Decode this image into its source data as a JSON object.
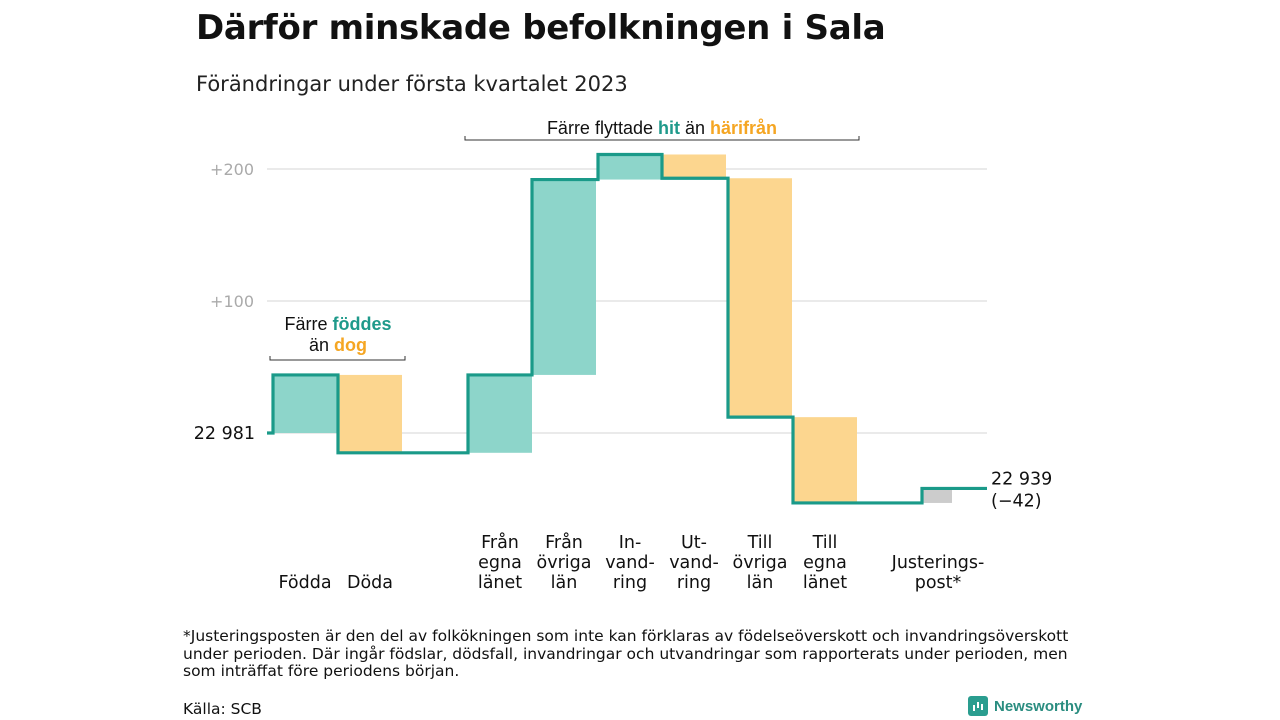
{
  "header": {
    "title": "Därför minskade befolkningen i Sala",
    "subtitle": "Förändringar under första kvartalet 2023"
  },
  "annotations": {
    "migration": {
      "prefix": "Färre flyttade ",
      "highlight_in": "hit",
      "middle": " än ",
      "highlight_out": "härifrån"
    },
    "births": {
      "prefix": "Färre ",
      "highlight_in": "föddes",
      "line2_prefix": "än ",
      "highlight_out": "dog"
    },
    "start_label": "22 981",
    "end_label": "22 939",
    "end_change": "(−42)"
  },
  "colors": {
    "increase": "#8dd5ca",
    "decrease": "#fcd68f",
    "adjustment": "#cccccc",
    "step_line": "#1a9a89",
    "in_text": "#1f9a8b",
    "out_text": "#f5a623",
    "grid": "#dddddd",
    "tick_text": "#aaaaaa"
  },
  "chart_data": {
    "type": "waterfall",
    "baseline_start": 22981,
    "yticks": [
      {
        "value": 200,
        "label": "+200"
      },
      {
        "value": 100,
        "label": "+100"
      }
    ],
    "grid": true,
    "steps": [
      {
        "category": [
          "Födda"
        ],
        "change": 44,
        "kind": "increase"
      },
      {
        "category": [
          "Döda"
        ],
        "change": -59,
        "kind": "decrease"
      },
      {
        "category": [
          "Från",
          "egna",
          "länet"
        ],
        "change": 59,
        "kind": "increase"
      },
      {
        "category": [
          "Från",
          "övriga",
          "län"
        ],
        "change": 148,
        "kind": "increase"
      },
      {
        "category": [
          "In-",
          "vand-",
          "ring"
        ],
        "change": 19,
        "kind": "increase"
      },
      {
        "category": [
          "Ut-",
          "vand-",
          "ring"
        ],
        "change": -18,
        "kind": "decrease"
      },
      {
        "category": [
          "Till",
          "övriga",
          "län"
        ],
        "change": -181,
        "kind": "decrease"
      },
      {
        "category": [
          "Till",
          "egna",
          "länet"
        ],
        "change": -65,
        "kind": "decrease"
      },
      {
        "category": [
          "Justerings-",
          "post*"
        ],
        "change": 11,
        "kind": "adjustment"
      }
    ],
    "end_value": 22939,
    "net_change": -42
  },
  "footer": {
    "footnote": "*Justeringsposten är den del av folkökningen som inte kan förklaras av födelseöverskott och invandringsöverskott under perioden. Där ingår födslar, dödsfall, invandringar och utvandringar som rapporterats under perioden, men som inträffat före periodens början.",
    "source": "Källa: SCB",
    "brand": "Newsworthy"
  }
}
